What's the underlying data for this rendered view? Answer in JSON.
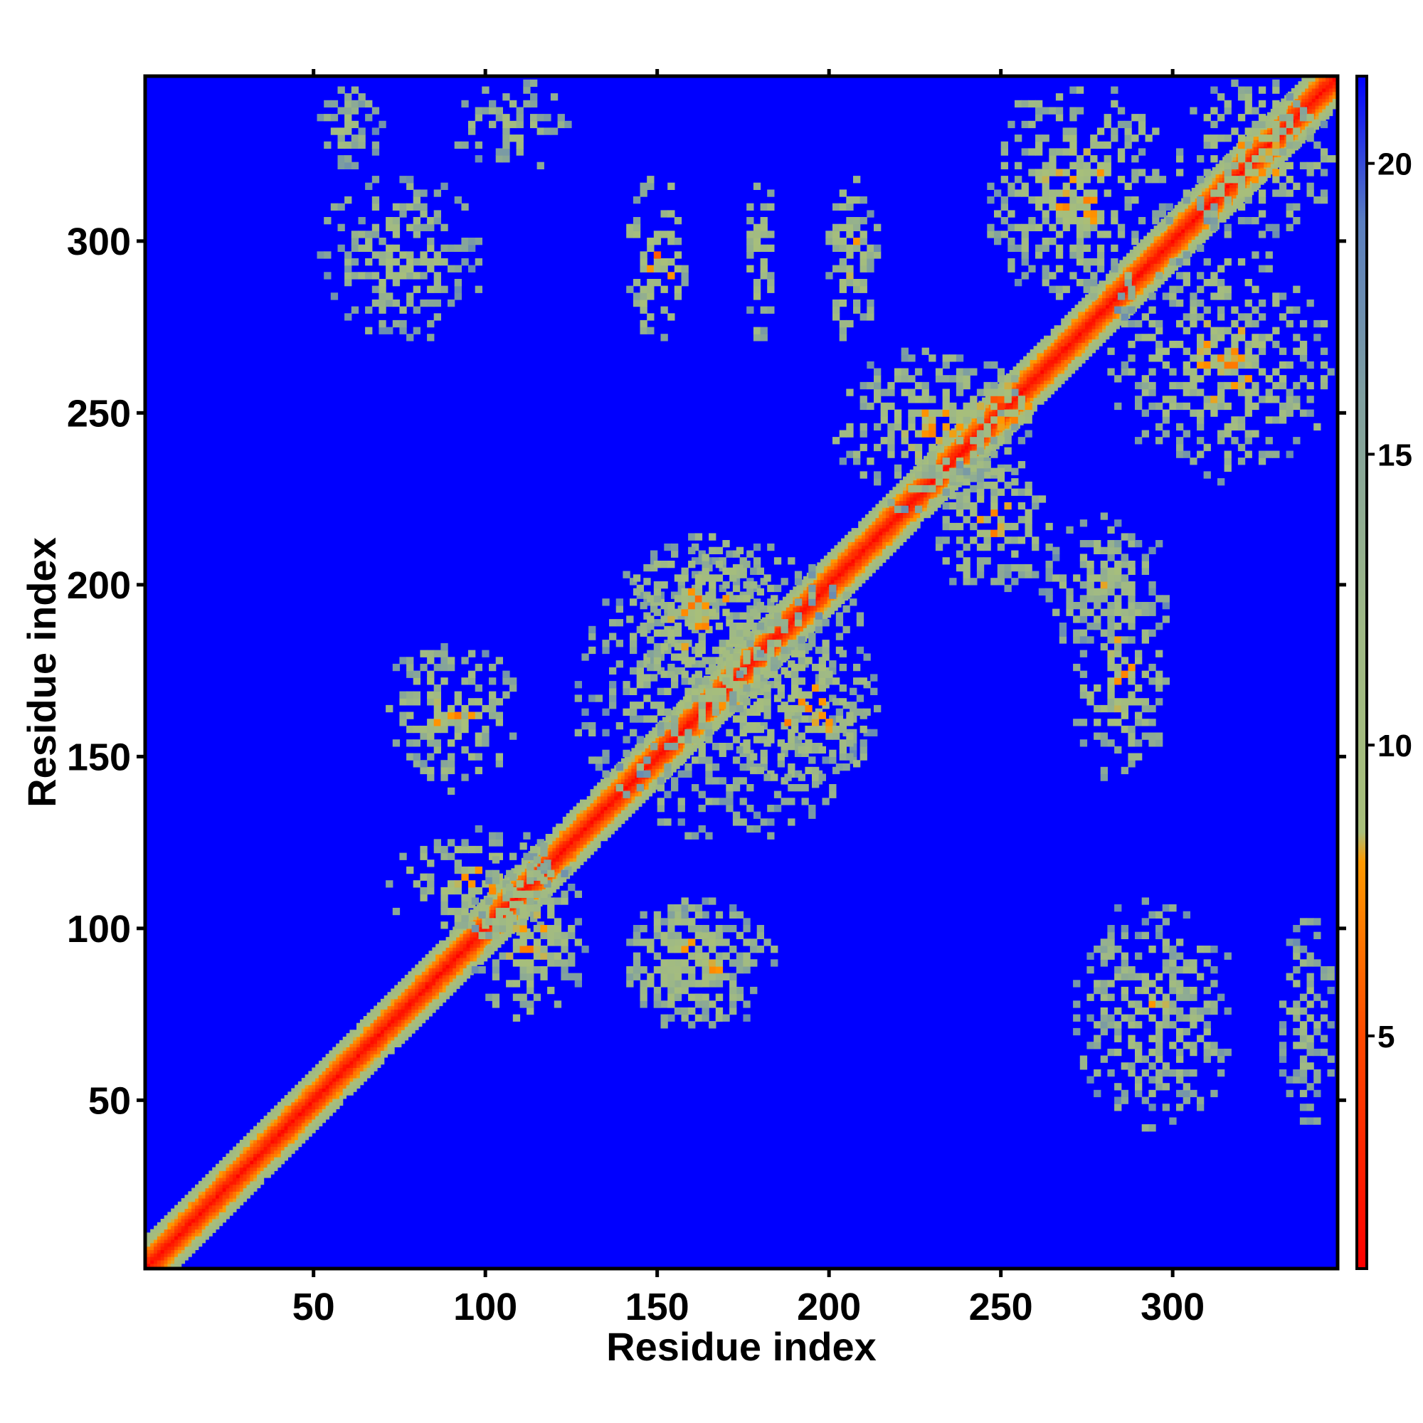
{
  "chart_data": {
    "type": "heatmap",
    "title": "",
    "xlabel": "Residue index",
    "ylabel": "Residue index",
    "n_residues": 348,
    "xlim": [
      1,
      348
    ],
    "ylim": [
      1,
      348
    ],
    "x_ticks": [
      50,
      100,
      150,
      200,
      250,
      300
    ],
    "y_ticks": [
      50,
      100,
      150,
      200,
      250,
      300
    ],
    "colorbar": {
      "range": [
        1,
        21.5
      ],
      "ticks": [
        5,
        10,
        15,
        20
      ],
      "stops": [
        {
          "value": 1,
          "color": "#ff0000"
        },
        {
          "value": 5,
          "color": "#ff4a00"
        },
        {
          "value": 8,
          "color": "#ff9a00"
        },
        {
          "value": 8.5,
          "color": "#a8bf7a"
        },
        {
          "value": 12,
          "color": "#9fb985"
        },
        {
          "value": 16,
          "color": "#7f9fa0"
        },
        {
          "value": 19,
          "color": "#5a7ec0"
        },
        {
          "value": 21.5,
          "color": "#0000ff"
        }
      ]
    },
    "background_color": "#0000ff",
    "grid": false,
    "diagonal": {
      "from": 1,
      "to": 348,
      "values": "distance rises from ~1 on the diagonal to ~10 at |i-j| = 8"
    },
    "contact_regions": [
      {
        "x": [
          70,
          125
        ],
        "y": [
          95,
          130
        ],
        "value": 9
      },
      {
        "x": [
          95,
          130
        ],
        "y": [
          70,
          125
        ],
        "value": 9
      },
      {
        "x": [
          70,
          110
        ],
        "y": [
          140,
          185
        ],
        "value": 9
      },
      {
        "x": [
          140,
          185
        ],
        "y": [
          70,
          110
        ],
        "value": 9
      },
      {
        "x": [
          125,
          215
        ],
        "y": [
          125,
          215
        ],
        "value": 10
      },
      {
        "x": [
          140,
          180
        ],
        "y": [
          70,
          110
        ],
        "value": 9
      },
      {
        "x": [
          170,
          215
        ],
        "y": [
          140,
          185
        ],
        "value": 8
      },
      {
        "x": [
          140,
          185
        ],
        "y": [
          170,
          215
        ],
        "value": 8
      },
      {
        "x": [
          200,
          260
        ],
        "y": [
          220,
          270
        ],
        "value": 9
      },
      {
        "x": [
          230,
          265
        ],
        "y": [
          195,
          240
        ],
        "value": 9
      },
      {
        "x": [
          240,
          262
        ],
        "y": [
          240,
          262
        ],
        "value": 6
      },
      {
        "x": [
          270,
          320
        ],
        "y": [
          40,
          110
        ],
        "value": 10
      },
      {
        "x": [
          330,
          348
        ],
        "y": [
          40,
          110
        ],
        "value": 11
      },
      {
        "x": [
          270,
          300
        ],
        "y": [
          140,
          210
        ],
        "value": 9
      },
      {
        "x": [
          280,
          348
        ],
        "y": [
          230,
          300
        ],
        "value": 9
      },
      {
        "x": [
          245,
          300
        ],
        "y": [
          280,
          348
        ],
        "value": 9
      },
      {
        "x": [
          50,
          100
        ],
        "y": [
          270,
          320
        ],
        "value": 10
      },
      {
        "x": [
          50,
          70
        ],
        "y": [
          320,
          348
        ],
        "value": 11
      },
      {
        "x": [
          140,
          160
        ],
        "y": [
          270,
          320
        ],
        "value": 8
      },
      {
        "x": [
          175,
          185
        ],
        "y": [
          270,
          320
        ],
        "value": 9
      },
      {
        "x": [
          198,
          215
        ],
        "y": [
          270,
          320
        ],
        "value": 9
      },
      {
        "x": [
          90,
          125
        ],
        "y": [
          320,
          348
        ],
        "value": 11
      },
      {
        "x": [
          300,
          348
        ],
        "y": [
          300,
          348
        ],
        "value": 9
      },
      {
        "x": [
          260,
          300
        ],
        "y": [
          180,
          220
        ],
        "value": 10
      }
    ]
  }
}
